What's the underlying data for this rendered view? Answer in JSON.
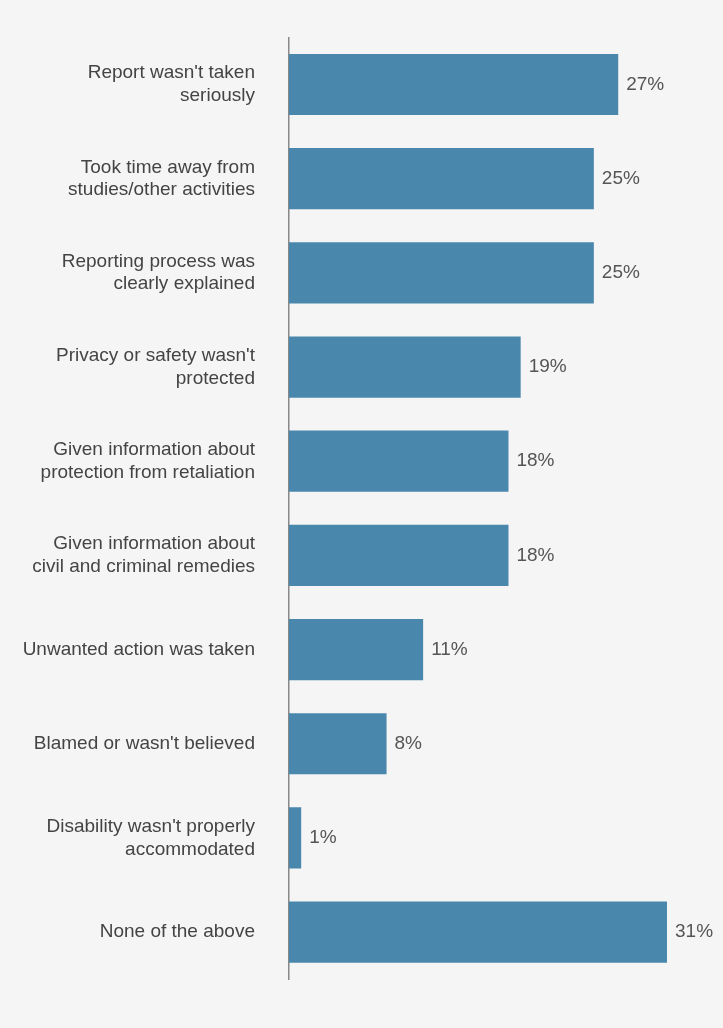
{
  "chart_data": {
    "type": "bar",
    "orientation": "horizontal",
    "categories": [
      "Report wasn't taken seriously",
      "Took time away from studies/other activities",
      "Reporting process was clearly explained",
      "Privacy or safety wasn't protected",
      "Given information about protection from retaliation",
      "Given information about civil and criminal remedies",
      "Unwanted action was taken",
      "Blamed or wasn't believed",
      "Disability wasn't properly accommodated",
      "None of the above"
    ],
    "values": [
      27,
      25,
      25,
      19,
      18,
      18,
      11,
      8,
      1,
      31
    ],
    "value_labels": [
      "27%",
      "25%",
      "25%",
      "19%",
      "18%",
      "18%",
      "11%",
      "8%",
      "1%",
      "31%"
    ],
    "color": "#4a87ad",
    "xlim": [
      0,
      31
    ],
    "tick_labels": "y",
    "legend": false
  }
}
